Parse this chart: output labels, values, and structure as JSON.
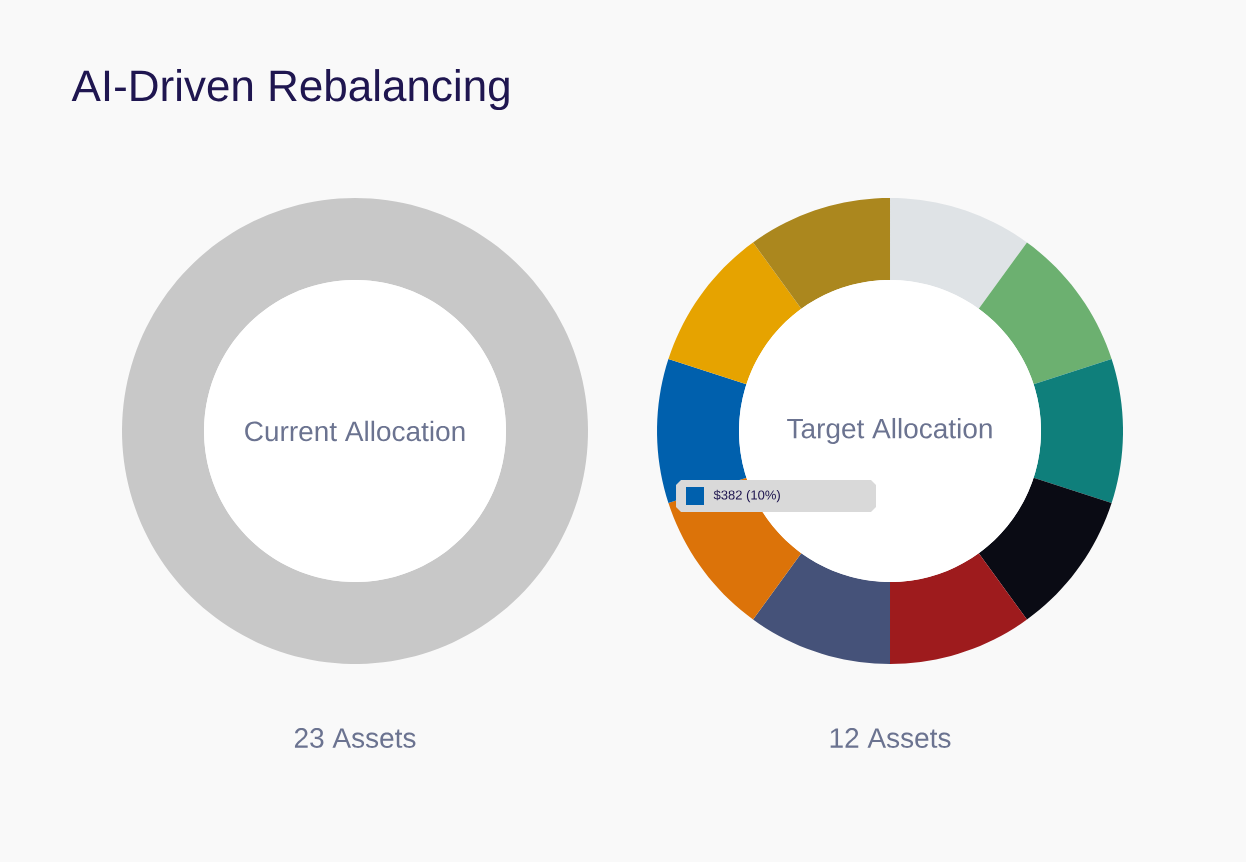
{
  "chart_data": [
    {
      "type": "donut",
      "title": "AI-Driven Rebalancing",
      "subtitle": "Current Allocation",
      "categories": [
        null
      ],
      "values": [
        100
      ],
      "colors": [
        "#c8c8c8"
      ],
      "annotations": [
        "23 Assets"
      ]
    },
    {
      "type": "donut",
      "subtitle": "Target Allocation",
      "categories": [
        null,
        null,
        null,
        null,
        null,
        null,
        null,
        null,
        null,
        null
      ],
      "values": [
        10,
        10,
        10,
        10,
        10,
        10,
        10,
        10,
        10,
        10
      ],
      "colors": [
        "#dfe3e6",
        "#6cb070",
        "#0f7f7b",
        "#0a0b14",
        "#9e1b1d",
        "#455279",
        "#dc7309",
        "#0060ad",
        "#e6a300",
        "#ab871e"
      ],
      "annotations": [
        "12 Assets",
        "$382 (10%)"
      ]
    }
  ]
}
